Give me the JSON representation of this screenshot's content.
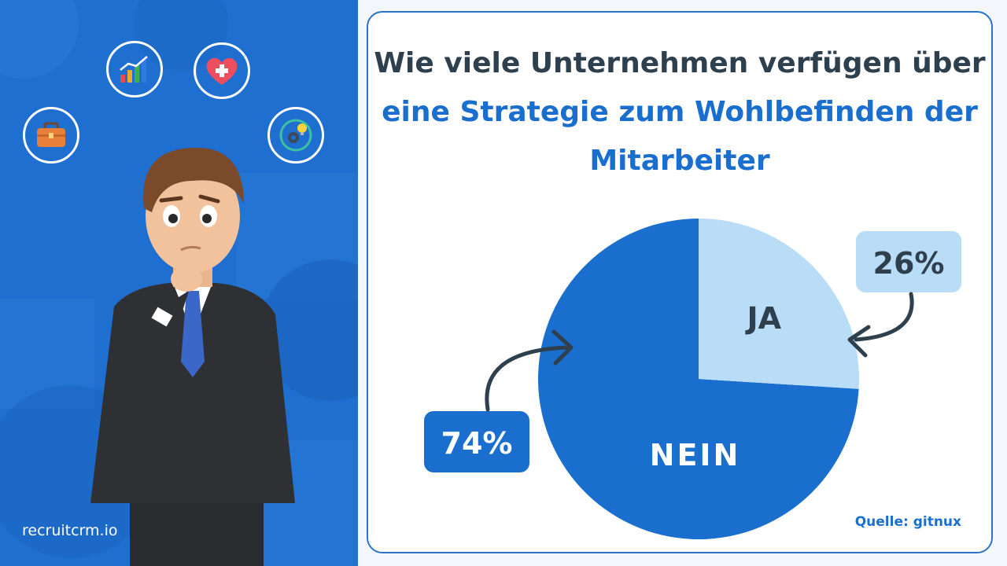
{
  "title": {
    "line1": "Wie viele Unternehmen verfügen über",
    "line2": "eine Strategie zum Wohlbefinden der",
    "line3": "Mitarbeiter"
  },
  "brand": "recruitcrm.io",
  "source": "Quelle: gitnux",
  "icons": [
    "briefcase-icon",
    "bar-chart-icon",
    "heart-plus-icon",
    "gear-bulb-icon"
  ],
  "colors": {
    "left_bg": "#1f6fd0",
    "nein": "#1a6fce",
    "ja": "#b9dcf7",
    "title_dark": "#2e3f4e",
    "accent": "#1a6fce"
  },
  "chart_data": {
    "type": "pie",
    "slices": [
      {
        "label": "JA",
        "value": 26,
        "value_label": "26%",
        "color": "#b9dcf7"
      },
      {
        "label": "NEIN",
        "value": 74,
        "value_label": "74%",
        "color": "#1a6fce"
      }
    ]
  }
}
